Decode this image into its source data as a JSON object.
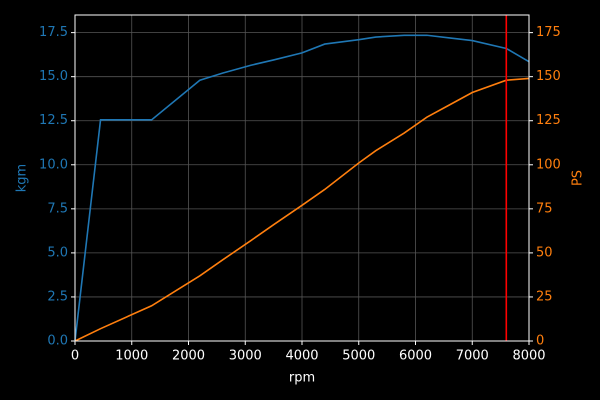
{
  "chart_data": {
    "type": "line",
    "x_label": "rpm",
    "y_label": "kgm",
    "y2_label": "PS",
    "x": [
      0,
      450,
      1350,
      2200,
      2600,
      3100,
      3500,
      4000,
      4400,
      5000,
      5300,
      5800,
      6200,
      6600,
      7000,
      7600,
      8000
    ],
    "series": [
      {
        "name": "kgm",
        "color": "#1f77b4",
        "values": [
          0,
          12.55,
          12.55,
          14.8,
          15.2,
          15.65,
          15.95,
          16.35,
          16.85,
          17.1,
          17.25,
          17.35,
          17.35,
          17.2,
          17.05,
          16.6,
          15.85
        ]
      },
      {
        "name": "PS",
        "color": "#ff7f0e",
        "axis": "y2",
        "values": [
          0,
          7,
          20,
          37,
          46,
          57,
          66,
          77,
          86,
          101,
          108,
          118,
          127,
          134,
          141,
          148,
          149
        ]
      }
    ],
    "xlim": [
      0,
      8000
    ],
    "xticks": [
      0,
      1000,
      2000,
      3000,
      4000,
      5000,
      6000,
      7000,
      8000
    ],
    "ylim": [
      0,
      18.5
    ],
    "yticks": [
      {
        "value": 0,
        "label": "0.0"
      },
      2.5,
      {
        "value": 5,
        "label": "5.0"
      },
      7.5,
      {
        "value": 10,
        "label": "10.0"
      },
      12.5,
      {
        "value": 15,
        "label": "15.0"
      },
      17.5
    ],
    "y2lim": [
      0,
      185
    ],
    "y2ticks": [
      0,
      25,
      50,
      75,
      100,
      125,
      150,
      175
    ],
    "grid": true,
    "vline": {
      "x": 7600,
      "color": "#ff0000"
    }
  }
}
